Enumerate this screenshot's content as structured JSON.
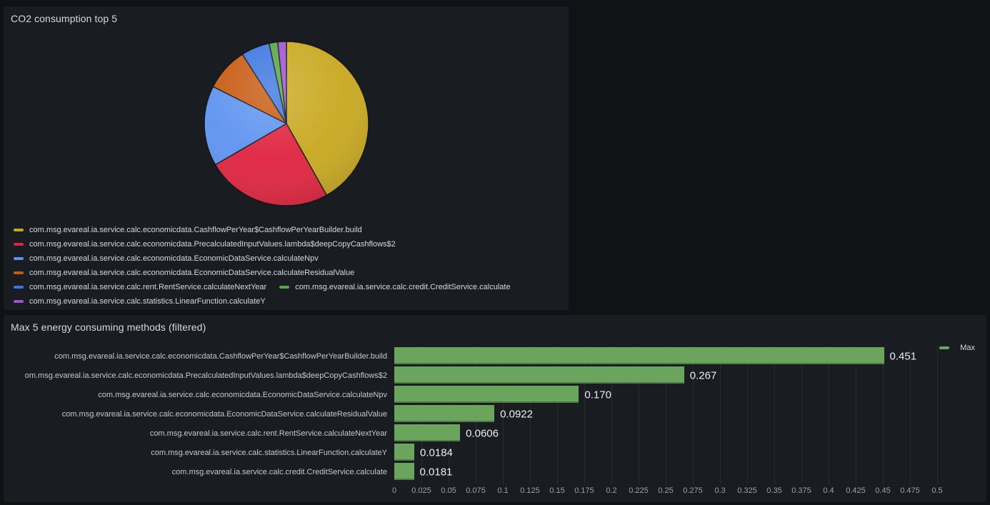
{
  "theme": {
    "page_bg": "#101216",
    "panel_bg": "#191c20",
    "panel_border": "#101114",
    "text_primary": "#d8d9da",
    "text_secondary": "#9da0a8",
    "grid_line": "rgba(255,255,255,0.07)"
  },
  "chart_data": [
    {
      "type": "pie",
      "title": "CO2 consumption top 5",
      "legend_position": "bottom",
      "series": [
        {
          "name": "com.msg.evareal.ia.service.calc.economicdata.CashflowPerYear$CashflowPerYearBuilder.build",
          "value": 0.451,
          "color": "#C9A820"
        },
        {
          "name": "com.msg.evareal.ia.service.calc.economicdata.PrecalculatedInputValues.lambda$deepCopyCashflows$2",
          "value": 0.267,
          "color": "#E0243F"
        },
        {
          "name": "com.msg.evareal.ia.service.calc.economicdata.EconomicDataService.calculateNpv",
          "value": 0.17,
          "color": "#5E93F0"
        },
        {
          "name": "com.msg.evareal.ia.service.calc.economicdata.EconomicDataService.calculateResidualValue",
          "value": 0.0922,
          "color": "#C75A12"
        },
        {
          "name": "com.msg.evareal.ia.service.calc.rent.RentService.calculateNextYear",
          "value": 0.0606,
          "color": "#3D76E0"
        },
        {
          "name": "com.msg.evareal.ia.service.calc.credit.CreditService.calculate",
          "value": 0.0181,
          "color": "#56A64B"
        },
        {
          "name": "com.msg.evareal.ia.service.calc.statistics.LinearFunction.calculateY",
          "value": 0.0184,
          "color": "#A352CC"
        }
      ]
    },
    {
      "type": "bar",
      "orientation": "horizontal",
      "title": "Max 5 energy consuming methods (filtered)",
      "legend": {
        "label": "Max",
        "color": "#6BA45D",
        "position": "top-right"
      },
      "bar_color": "#6BA45D",
      "xlim": [
        0,
        0.5
      ],
      "x_tick_labels": [
        "0",
        "0.025",
        "0.05",
        "0.075",
        "0.1",
        "0.125",
        "0.15",
        "0.175",
        "0.2",
        "0.225",
        "0.25",
        "0.275",
        "0.3",
        "0.325",
        "0.35",
        "0.375",
        "0.4",
        "0.425",
        "0.45",
        "0.475",
        "0.5"
      ],
      "grid": true,
      "categories": [
        "com.msg.evareal.ia.service.calc.economicdata.CashflowPerYear$CashflowPerYearBuilder.build",
        "om.msg.evareal.ia.service.calc.economicdata.PrecalculatedInputValues.lambda$deepCopyCashflows$2",
        "com.msg.evareal.ia.service.calc.economicdata.EconomicDataService.calculateNpv",
        "com.msg.evareal.ia.service.calc.economicdata.EconomicDataService.calculateResidualValue",
        "com.msg.evareal.ia.service.calc.rent.RentService.calculateNextYear",
        "com.msg.evareal.ia.service.calc.statistics.LinearFunction.calculateY",
        "com.msg.evareal.ia.service.calc.credit.CreditService.calculate"
      ],
      "values": [
        0.451,
        0.267,
        0.17,
        0.0922,
        0.0606,
        0.0184,
        0.0181
      ],
      "value_labels": [
        "0.451",
        "0.267",
        "0.170",
        "0.0922",
        "0.0606",
        "0.0184",
        "0.0181"
      ]
    }
  ]
}
